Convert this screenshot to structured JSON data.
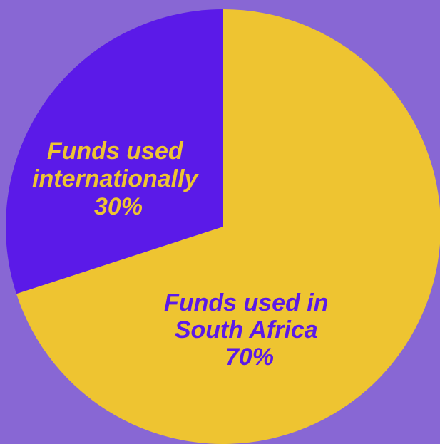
{
  "colors": {
    "background": "#8867d4",
    "yellow": "#eec431",
    "purple": "#5b1ae8"
  },
  "chart_data": {
    "type": "pie",
    "slices": [
      {
        "name": "Funds used in South Africa",
        "value": 70,
        "value_label": "70%",
        "color": "#eec431",
        "label_color": "#5b1ae8",
        "label_lines": [
          "Funds used in",
          "South Africa",
          "70%"
        ]
      },
      {
        "name": "Funds used internationally",
        "value": 30,
        "value_label": "30%",
        "color": "#5b1ae8",
        "label_color": "#eec431",
        "label_lines": [
          "Funds used",
          "internationally",
          "30%"
        ]
      }
    ],
    "start_angle_deg": 0,
    "direction": "clockwise",
    "legend": "none"
  }
}
